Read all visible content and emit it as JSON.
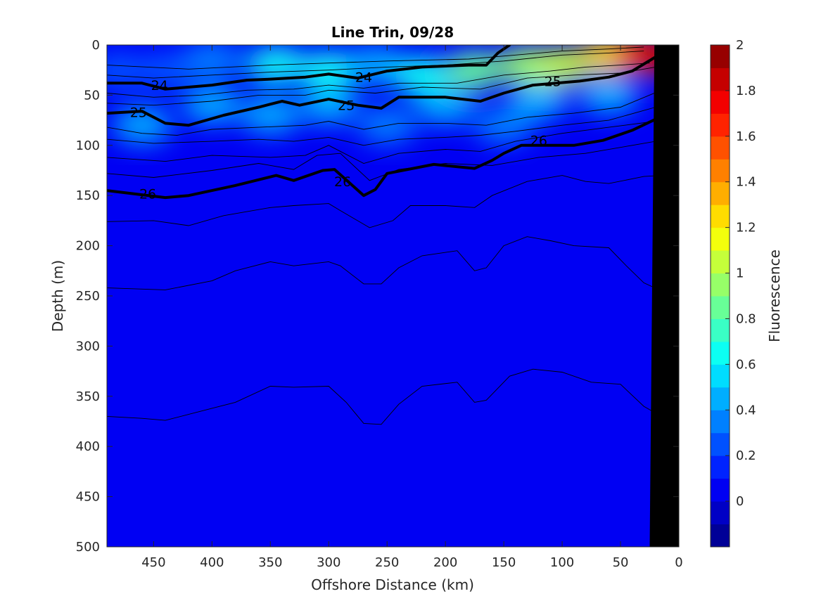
{
  "chart_data": {
    "type": "heatmap",
    "title": "Line Trin, 09/28",
    "xlabel": "Offshore Distance (km)",
    "ylabel": "Depth (m)",
    "colorbar_label": "Fluorescence",
    "xlim": [
      490,
      0
    ],
    "ylim": [
      500,
      0
    ],
    "x_reversed": true,
    "y_reversed": true,
    "x_ticks": [
      450,
      400,
      350,
      300,
      250,
      200,
      150,
      100,
      50,
      0
    ],
    "y_ticks": [
      0,
      50,
      100,
      150,
      200,
      250,
      300,
      350,
      400,
      450,
      500
    ],
    "colorbar_ticks": [
      0,
      0.2,
      0.4,
      0.6,
      0.8,
      1,
      1.2,
      1.4,
      1.6,
      1.8,
      2
    ],
    "colorbar_range": [
      -0.2,
      2
    ],
    "colormap": "jet",
    "background_value": 0.05,
    "fluorescence_patches": [
      {
        "x": 480,
        "y": 25,
        "value": 0.25
      },
      {
        "x": 440,
        "y": 25,
        "value": 0.28
      },
      {
        "x": 400,
        "y": 15,
        "value": 0.3
      },
      {
        "x": 345,
        "y": 20,
        "value": 0.65
      },
      {
        "x": 300,
        "y": 25,
        "value": 0.6
      },
      {
        "x": 260,
        "y": 20,
        "value": 0.5
      },
      {
        "x": 220,
        "y": 30,
        "value": 0.65
      },
      {
        "x": 175,
        "y": 25,
        "value": 0.8
      },
      {
        "x": 130,
        "y": 20,
        "value": 0.9
      },
      {
        "x": 100,
        "y": 20,
        "value": 1.0
      },
      {
        "x": 60,
        "y": 10,
        "value": 1.3
      },
      {
        "x": 30,
        "y": 10,
        "value": 1.7
      },
      {
        "x": 10,
        "y": 12,
        "value": 1.85
      },
      {
        "x": 460,
        "y": 80,
        "value": 0.45
      },
      {
        "x": 400,
        "y": 60,
        "value": 0.4
      },
      {
        "x": 350,
        "y": 70,
        "value": 0.4
      },
      {
        "x": 300,
        "y": 60,
        "value": 0.45
      },
      {
        "x": 200,
        "y": 60,
        "value": 0.4
      },
      {
        "x": 120,
        "y": 55,
        "value": 0.45
      },
      {
        "x": 60,
        "y": 50,
        "value": 0.5
      },
      {
        "x": 250,
        "y": 80,
        "value": 0.3
      },
      {
        "x": 150,
        "y": 80,
        "value": 0.3
      }
    ],
    "contours_major": [
      {
        "level": 24,
        "label_positions": [
          [
            445,
            40
          ],
          [
            270,
            32
          ]
        ],
        "points": [
          [
            490,
            38
          ],
          [
            460,
            38
          ],
          [
            440,
            44
          ],
          [
            400,
            40
          ],
          [
            370,
            35
          ],
          [
            350,
            34
          ],
          [
            320,
            32
          ],
          [
            300,
            29
          ],
          [
            275,
            33
          ],
          [
            250,
            26
          ],
          [
            220,
            22
          ],
          [
            180,
            20
          ],
          [
            165,
            20
          ],
          [
            155,
            8
          ],
          [
            145,
            0
          ]
        ]
      },
      {
        "level": 25,
        "label_positions": [
          [
            463,
            67
          ],
          [
            285,
            60
          ],
          [
            108,
            36
          ]
        ],
        "points": [
          [
            490,
            68
          ],
          [
            460,
            66
          ],
          [
            440,
            78
          ],
          [
            420,
            80
          ],
          [
            390,
            70
          ],
          [
            360,
            62
          ],
          [
            340,
            56
          ],
          [
            325,
            60
          ],
          [
            300,
            54
          ],
          [
            275,
            60
          ],
          [
            255,
            63
          ],
          [
            240,
            52
          ],
          [
            200,
            52
          ],
          [
            170,
            56
          ],
          [
            150,
            48
          ],
          [
            125,
            40
          ],
          [
            85,
            36
          ],
          [
            60,
            32
          ],
          [
            40,
            26
          ],
          [
            20,
            12
          ],
          [
            5,
            0
          ]
        ]
      },
      {
        "level": 26,
        "label_positions": [
          [
            455,
            148
          ],
          [
            288,
            136
          ],
          [
            120,
            95
          ]
        ],
        "points": [
          [
            490,
            145
          ],
          [
            440,
            152
          ],
          [
            420,
            150
          ],
          [
            380,
            140
          ],
          [
            345,
            130
          ],
          [
            330,
            135
          ],
          [
            305,
            125
          ],
          [
            295,
            124
          ],
          [
            270,
            150
          ],
          [
            260,
            144
          ],
          [
            250,
            128
          ],
          [
            210,
            119
          ],
          [
            175,
            123
          ],
          [
            160,
            115
          ],
          [
            150,
            108
          ],
          [
            135,
            100
          ],
          [
            90,
            100
          ],
          [
            65,
            95
          ],
          [
            40,
            85
          ],
          [
            20,
            74
          ],
          [
            8,
            72
          ]
        ]
      }
    ],
    "contours_minor": [
      [
        [
          490,
          20
        ],
        [
          420,
          24
        ],
        [
          350,
          20
        ],
        [
          300,
          18
        ],
        [
          250,
          16
        ],
        [
          180,
          14
        ],
        [
          140,
          10
        ],
        [
          100,
          6
        ],
        [
          60,
          4
        ],
        [
          30,
          2
        ]
      ],
      [
        [
          490,
          30
        ],
        [
          450,
          33
        ],
        [
          400,
          30
        ],
        [
          350,
          27
        ],
        [
          300,
          25
        ],
        [
          250,
          22
        ],
        [
          200,
          20
        ],
        [
          150,
          16
        ],
        [
          100,
          10
        ],
        [
          60,
          8
        ],
        [
          30,
          6
        ]
      ],
      [
        [
          490,
          48
        ],
        [
          450,
          52
        ],
        [
          410,
          50
        ],
        [
          370,
          45
        ],
        [
          330,
          44
        ],
        [
          300,
          40
        ],
        [
          270,
          43
        ],
        [
          240,
          38
        ],
        [
          190,
          38
        ],
        [
          150,
          30
        ],
        [
          110,
          26
        ],
        [
          80,
          22
        ],
        [
          50,
          20
        ],
        [
          25,
          18
        ]
      ],
      [
        [
          490,
          58
        ],
        [
          450,
          60
        ],
        [
          400,
          56
        ],
        [
          360,
          50
        ],
        [
          320,
          50
        ],
        [
          300,
          45
        ],
        [
          260,
          48
        ],
        [
          220,
          42
        ],
        [
          170,
          44
        ],
        [
          130,
          33
        ],
        [
          90,
          30
        ],
        [
          50,
          28
        ],
        [
          20,
          22
        ]
      ],
      [
        [
          490,
          82
        ],
        [
          460,
          88
        ],
        [
          430,
          90
        ],
        [
          400,
          84
        ],
        [
          360,
          82
        ],
        [
          320,
          80
        ],
        [
          300,
          76
        ],
        [
          270,
          84
        ],
        [
          240,
          78
        ],
        [
          200,
          78
        ],
        [
          165,
          80
        ],
        [
          130,
          72
        ],
        [
          90,
          68
        ],
        [
          50,
          62
        ],
        [
          15,
          45
        ]
      ],
      [
        [
          490,
          94
        ],
        [
          450,
          98
        ],
        [
          400,
          96
        ],
        [
          360,
          94
        ],
        [
          330,
          96
        ],
        [
          300,
          92
        ],
        [
          270,
          100
        ],
        [
          240,
          94
        ],
        [
          200,
          92
        ],
        [
          170,
          90
        ],
        [
          140,
          86
        ],
        [
          100,
          80
        ],
        [
          60,
          75
        ],
        [
          20,
          62
        ]
      ],
      [
        [
          490,
          112
        ],
        [
          440,
          116
        ],
        [
          400,
          110
        ],
        [
          350,
          112
        ],
        [
          320,
          110
        ],
        [
          300,
          100
        ],
        [
          270,
          118
        ],
        [
          240,
          108
        ],
        [
          200,
          104
        ],
        [
          170,
          106
        ],
        [
          140,
          96
        ],
        [
          100,
          88
        ],
        [
          60,
          82
        ],
        [
          20,
          76
        ]
      ],
      [
        [
          490,
          128
        ],
        [
          450,
          132
        ],
        [
          400,
          125
        ],
        [
          360,
          118
        ],
        [
          330,
          124
        ],
        [
          310,
          110
        ],
        [
          290,
          108
        ],
        [
          265,
          135
        ],
        [
          240,
          124
        ],
        [
          200,
          118
        ],
        [
          160,
          120
        ],
        [
          120,
          112
        ],
        [
          80,
          108
        ],
        [
          40,
          100
        ],
        [
          10,
          94
        ]
      ],
      [
        [
          490,
          176
        ],
        [
          450,
          175
        ],
        [
          420,
          180
        ],
        [
          390,
          170
        ],
        [
          350,
          162
        ],
        [
          330,
          160
        ],
        [
          300,
          158
        ],
        [
          290,
          165
        ],
        [
          265,
          182
        ],
        [
          245,
          175
        ],
        [
          230,
          160
        ],
        [
          200,
          160
        ],
        [
          175,
          162
        ],
        [
          160,
          150
        ],
        [
          130,
          136
        ],
        [
          100,
          130
        ],
        [
          80,
          136
        ],
        [
          60,
          138
        ],
        [
          30,
          131
        ],
        [
          15,
          130
        ]
      ],
      [
        [
          490,
          242
        ],
        [
          440,
          244
        ],
        [
          400,
          235
        ],
        [
          380,
          225
        ],
        [
          350,
          216
        ],
        [
          330,
          220
        ],
        [
          300,
          216
        ],
        [
          290,
          220
        ],
        [
          270,
          238
        ],
        [
          255,
          238
        ],
        [
          240,
          222
        ],
        [
          220,
          210
        ],
        [
          190,
          205
        ],
        [
          175,
          225
        ],
        [
          165,
          222
        ],
        [
          150,
          200
        ],
        [
          130,
          191
        ],
        [
          110,
          195
        ],
        [
          90,
          200
        ],
        [
          60,
          202
        ],
        [
          45,
          220
        ],
        [
          30,
          237
        ],
        [
          15,
          245
        ]
      ],
      [
        [
          490,
          370
        ],
        [
          460,
          372
        ],
        [
          440,
          374
        ],
        [
          400,
          362
        ],
        [
          380,
          356
        ],
        [
          350,
          340
        ],
        [
          330,
          341
        ],
        [
          300,
          340
        ],
        [
          285,
          356
        ],
        [
          270,
          377
        ],
        [
          255,
          378
        ],
        [
          240,
          358
        ],
        [
          220,
          340
        ],
        [
          190,
          336
        ],
        [
          175,
          356
        ],
        [
          165,
          354
        ],
        [
          145,
          330
        ],
        [
          125,
          323
        ],
        [
          100,
          326
        ],
        [
          75,
          336
        ],
        [
          50,
          338
        ],
        [
          30,
          360
        ],
        [
          15,
          370
        ],
        [
          5,
          370
        ]
      ]
    ],
    "seafloor": [
      [
        21,
        0
      ],
      [
        0,
        0
      ],
      [
        0,
        500
      ],
      [
        25,
        500
      ]
    ]
  }
}
